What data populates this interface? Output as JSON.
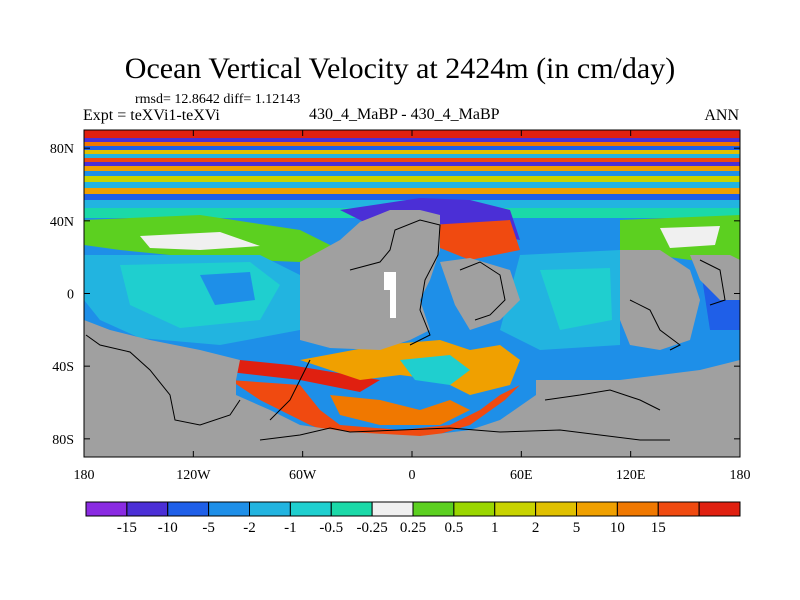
{
  "title": "Ocean Vertical Velocity at 2424m (in cm/day)",
  "stats": "rmsd= 12.8642 diff= 1.12143",
  "expt": "Expt = teXVi1-teXVi",
  "center_label": "430_4_MaBP - 430_4_MaBP",
  "period": "ANN",
  "land_color": "#a0a0a0",
  "x_axis": {
    "ticks": [
      {
        "value": -180,
        "label": "180"
      },
      {
        "value": -120,
        "label": "120W"
      },
      {
        "value": -60,
        "label": "60W"
      },
      {
        "value": 0,
        "label": "0"
      },
      {
        "value": 60,
        "label": "60E"
      },
      {
        "value": 120,
        "label": "120E"
      },
      {
        "value": 180,
        "label": "180"
      }
    ],
    "range": [
      -180,
      180
    ]
  },
  "y_axis": {
    "ticks": [
      {
        "value": 80,
        "label": "80N"
      },
      {
        "value": 40,
        "label": "40N"
      },
      {
        "value": 0,
        "label": "0"
      },
      {
        "value": -40,
        "label": "40S"
      },
      {
        "value": -80,
        "label": "80S"
      }
    ],
    "range": [
      -90,
      90
    ]
  },
  "colorbar": {
    "colors": [
      "#8a2be2",
      "#4b2fd6",
      "#1f5fe8",
      "#1e8fe8",
      "#22b4e0",
      "#1fcfcf",
      "#1bd9a8",
      "#f0f0f0",
      "#5cd020",
      "#9ad600",
      "#c8d300",
      "#e0c000",
      "#f0a000",
      "#f07800",
      "#f04a10",
      "#e02010"
    ],
    "labels": [
      "-15",
      "-10",
      "-5",
      "-2",
      "-1",
      "-0.5",
      "-0.25",
      "0.25",
      "0.5",
      "1",
      "2",
      "5",
      "10",
      "15"
    ]
  }
}
